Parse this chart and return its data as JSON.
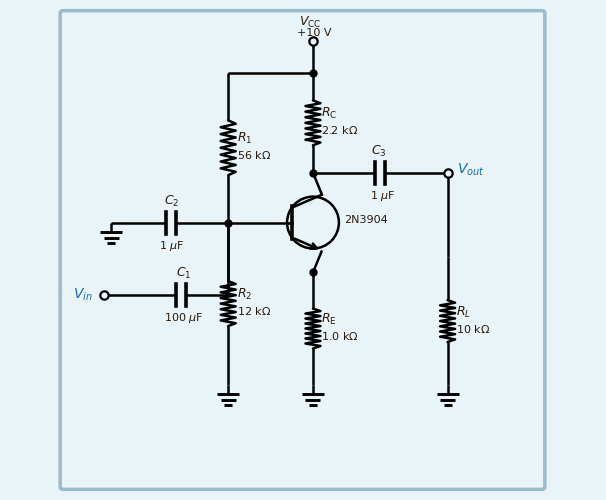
{
  "bg_color": "#e8f4f8",
  "border_color": "#9bbccc",
  "line_color": "#000000",
  "text_color": "#2a1a0a",
  "blue_color": "#1a6aaa",
  "fig_width": 6.06,
  "fig_height": 5.0,
  "dpi": 100
}
